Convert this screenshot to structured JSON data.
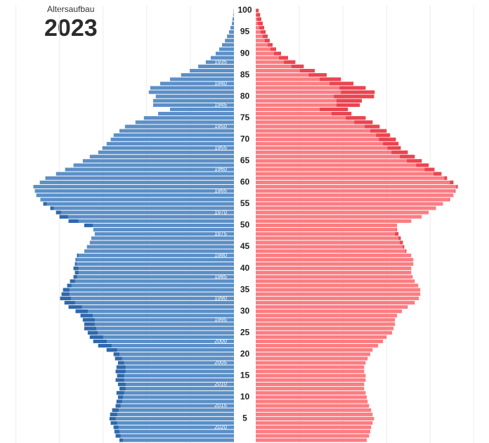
{
  "chart_data": {
    "type": "population_pyramid",
    "subtitle": "Altersaufbau",
    "title": "2023",
    "categories": [
      null,
      null,
      null,
      null,
      null,
      5,
      null,
      null,
      null,
      null,
      10,
      null,
      null,
      null,
      null,
      15,
      null,
      null,
      null,
      null,
      20,
      null,
      null,
      null,
      null,
      25,
      null,
      null,
      null,
      null,
      30,
      null,
      null,
      null,
      null,
      35,
      null,
      null,
      null,
      null,
      40,
      null,
      null,
      null,
      null,
      45,
      null,
      null,
      null,
      null,
      50,
      null,
      null,
      null,
      null,
      55,
      null,
      null,
      null,
      null,
      60,
      null,
      null,
      null,
      null,
      65,
      null,
      null,
      null,
      null,
      70,
      null,
      null,
      null,
      null,
      75,
      null,
      null,
      null,
      null,
      80,
      null,
      null,
      null,
      null,
      85,
      null,
      null,
      null,
      null,
      90,
      null,
      null,
      null,
      null,
      95,
      null,
      null,
      null,
      null,
      100
    ],
    "year_labels": [
      null,
      null,
      null,
      2020,
      null,
      null,
      null,
      null,
      2015,
      null,
      null,
      null,
      null,
      2010,
      null,
      null,
      null,
      null,
      2005,
      null,
      null,
      null,
      null,
      2000,
      null,
      null,
      null,
      null,
      1995,
      null,
      null,
      null,
      null,
      1990,
      null,
      null,
      null,
      null,
      1985,
      null,
      null,
      null,
      null,
      1980,
      null,
      null,
      null,
      null,
      1975,
      null,
      null,
      null,
      null,
      1970,
      null,
      null,
      null,
      null,
      1965,
      null,
      null,
      null,
      null,
      1960,
      null,
      null,
      null,
      null,
      1955,
      null,
      null,
      null,
      null,
      1950,
      null,
      null,
      null,
      null,
      1945,
      null,
      null,
      null,
      null,
      1940,
      null,
      null,
      null,
      null,
      1935,
      null,
      null,
      null,
      null,
      null,
      null,
      null,
      null,
      null,
      null,
      null,
      null
    ],
    "series": [
      {
        "side": "left",
        "color": "#5b8fc7",
        "surplus_color": "#2f68ab",
        "values": [
          394,
          407,
          411,
          414,
          424,
          428,
          426,
          419,
          407,
          404,
          399,
          404,
          394,
          399,
          407,
          402,
          407,
          404,
          399,
          409,
          414,
          438,
          467,
          484,
          496,
          503,
          515,
          515,
          520,
          528,
          545,
          569,
          583,
          598,
          593,
          588,
          574,
          564,
          552,
          547,
          552,
          547,
          545,
          540,
          515,
          506,
          496,
          491,
          479,
          484,
          515,
          569,
          600,
          612,
          632,
          656,
          666,
          680,
          685,
          690,
          668,
          649,
          612,
          581,
          552,
          520,
          496,
          467,
          453,
          438,
          424,
          414,
          394,
          375,
          339,
          310,
          261,
          220,
          278,
          278,
          269,
          293,
          288,
          254,
          220,
          182,
          152,
          123,
          97,
          80,
          63,
          51,
          41,
          31,
          24,
          17,
          12,
          7,
          5,
          2,
          1
        ]
      },
      {
        "side": "right",
        "color": "#fb7d82",
        "surplus_color": "#ea4550",
        "values": [
          382,
          390,
          394,
          397,
          402,
          407,
          402,
          397,
          390,
          385,
          382,
          378,
          373,
          373,
          378,
          378,
          373,
          373,
          378,
          385,
          394,
          402,
          421,
          438,
          450,
          469,
          474,
          479,
          479,
          486,
          503,
          523,
          547,
          561,
          566,
          566,
          559,
          547,
          540,
          535,
          535,
          542,
          542,
          535,
          518,
          511,
          506,
          499,
          491,
          486,
          486,
          535,
          571,
          595,
          620,
          644,
          668,
          680,
          687,
          695,
          680,
          658,
          639,
          615,
          595,
          571,
          547,
          523,
          499,
          491,
          482,
          462,
          450,
          426,
          402,
          378,
          329,
          317,
          358,
          365,
          407,
          409,
          378,
          336,
          293,
          244,
          203,
          165,
          136,
          111,
          87,
          70,
          58,
          48,
          41,
          34,
          29,
          24,
          19,
          15,
          10
        ]
      }
    ],
    "xlim": [
      0,
      800
    ],
    "xticks": [
      150,
      300,
      450,
      600,
      750
    ],
    "grid": true
  }
}
